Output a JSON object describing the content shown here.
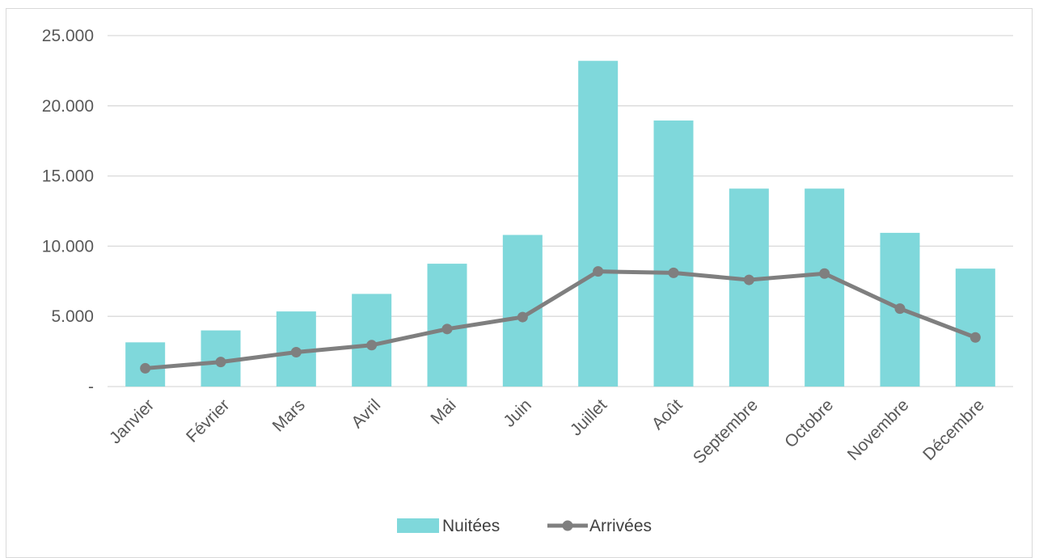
{
  "chart_data": {
    "type": "bar+line",
    "categories": [
      "Janvier",
      "Février",
      "Mars",
      "Avril",
      "Mai",
      "Juin",
      "Juillet",
      "Août",
      "Septembre",
      "Octobre",
      "Novembre",
      "Décembre"
    ],
    "series": [
      {
        "name": "Nuitées",
        "type": "bar",
        "color": "#7fd8db",
        "values": [
          3150,
          4000,
          5350,
          6600,
          8750,
          10800,
          23200,
          18950,
          14100,
          14100,
          10950,
          8400
        ]
      },
      {
        "name": "Arrivées",
        "type": "line",
        "color": "#7f7f7f",
        "values": [
          1300,
          1750,
          2450,
          2950,
          4100,
          4950,
          8200,
          8100,
          7600,
          8050,
          5550,
          3500
        ]
      }
    ],
    "ylim": [
      0,
      25000
    ],
    "yticks": [
      {
        "value": 0,
        "label": "-"
      },
      {
        "value": 5000,
        "label": "5.000"
      },
      {
        "value": 10000,
        "label": "10.000"
      },
      {
        "value": 15000,
        "label": "15.000"
      },
      {
        "value": 20000,
        "label": "20.000"
      },
      {
        "value": 25000,
        "label": "25.000"
      }
    ],
    "grid": true,
    "legend": "bottom",
    "gridColor": "#d9d9d9"
  }
}
